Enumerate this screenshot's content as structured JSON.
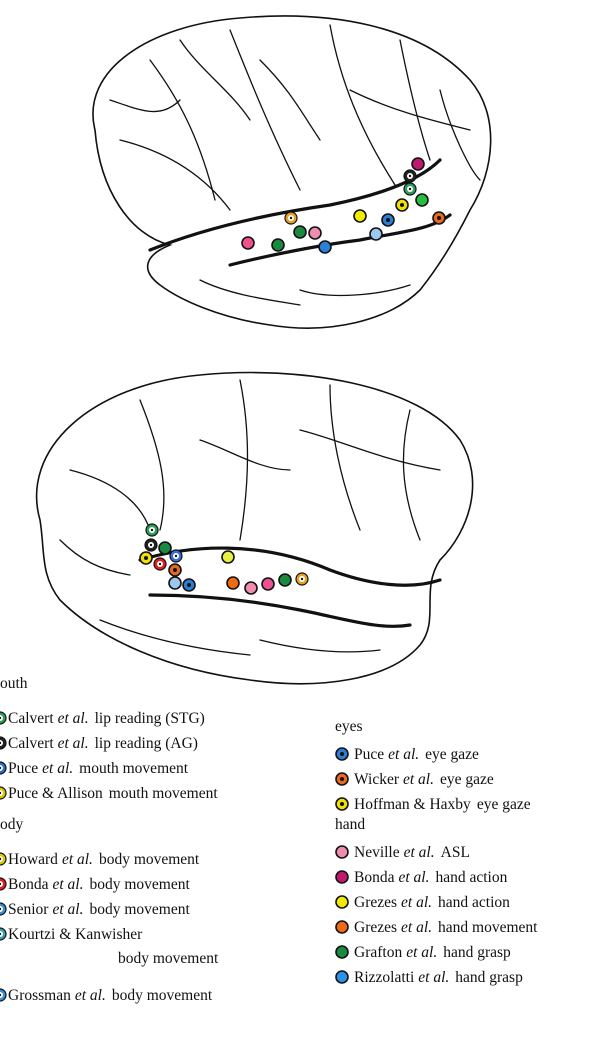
{
  "legend": {
    "left": [
      {
        "heading": "outh",
        "marker": "ring",
        "items": [
          {
            "author": "Calvert",
            "italic": "et al.",
            "label": "lip reading (STG)",
            "color": "#2ca05a"
          },
          {
            "author": "Calvert",
            "italic": "et al.",
            "label": "lip reading (AG)",
            "color": "#222222"
          },
          {
            "author": "Puce",
            "italic": "et al.",
            "label": "mouth movement",
            "color": "#2a6fd6"
          },
          {
            "author": "Puce & Allison",
            "label": "mouth movement",
            "color": "#e0c400"
          }
        ]
      },
      {
        "heading": "ody",
        "marker": "ring",
        "items": [
          {
            "author": "Howard",
            "italic": "et al.",
            "label": "body movement",
            "color": "#e0c400"
          },
          {
            "author": "Bonda",
            "italic": "et al.",
            "label": "body movement",
            "color": "#e02020"
          },
          {
            "author": "Senior",
            "italic": "et al.",
            "label": "body movement",
            "color": "#3a8fd6"
          },
          {
            "author": "Kourtzi & Kanwisher",
            "label": "body movement",
            "color": "#3aa0b0"
          },
          {
            "author": "Grossman",
            "italic": "et al.",
            "label": "body movement",
            "color": "#3a8fd6"
          }
        ]
      }
    ],
    "right": [
      {
        "heading": "eyes",
        "marker": "dot",
        "items": [
          {
            "author": "Puce",
            "italic": "et al.",
            "label": "eye gaze",
            "color": "#2a7fd6"
          },
          {
            "author": "Wicker",
            "italic": "et al.",
            "label": "eye gaze",
            "color": "#e86a20"
          },
          {
            "author": "Hoffman & Haxby",
            "label": "eye gaze",
            "color": "#f2e000"
          }
        ]
      },
      {
        "heading": "hand",
        "marker": "disc",
        "items": [
          {
            "author": "Neville",
            "italic": "et al.",
            "label": "ASL",
            "color": "#f08cb0"
          },
          {
            "author": "Bonda",
            "italic": "et al.",
            "label": "hand action",
            "color": "#c01870"
          },
          {
            "author": "Grezes",
            "italic": "et al.",
            "label": "hand action",
            "color": "#f2ea00"
          },
          {
            "author": "Grezes",
            "italic": "et al.",
            "label": "hand movement",
            "color": "#f06a10"
          },
          {
            "author": "Grafton",
            "italic": "et al.",
            "label": "hand grasp",
            "color": "#1a8a40"
          },
          {
            "author": "Rizzolatti",
            "italic": "et al.",
            "label": "hand grasp",
            "color": "#2a90e8"
          }
        ]
      }
    ]
  }
}
